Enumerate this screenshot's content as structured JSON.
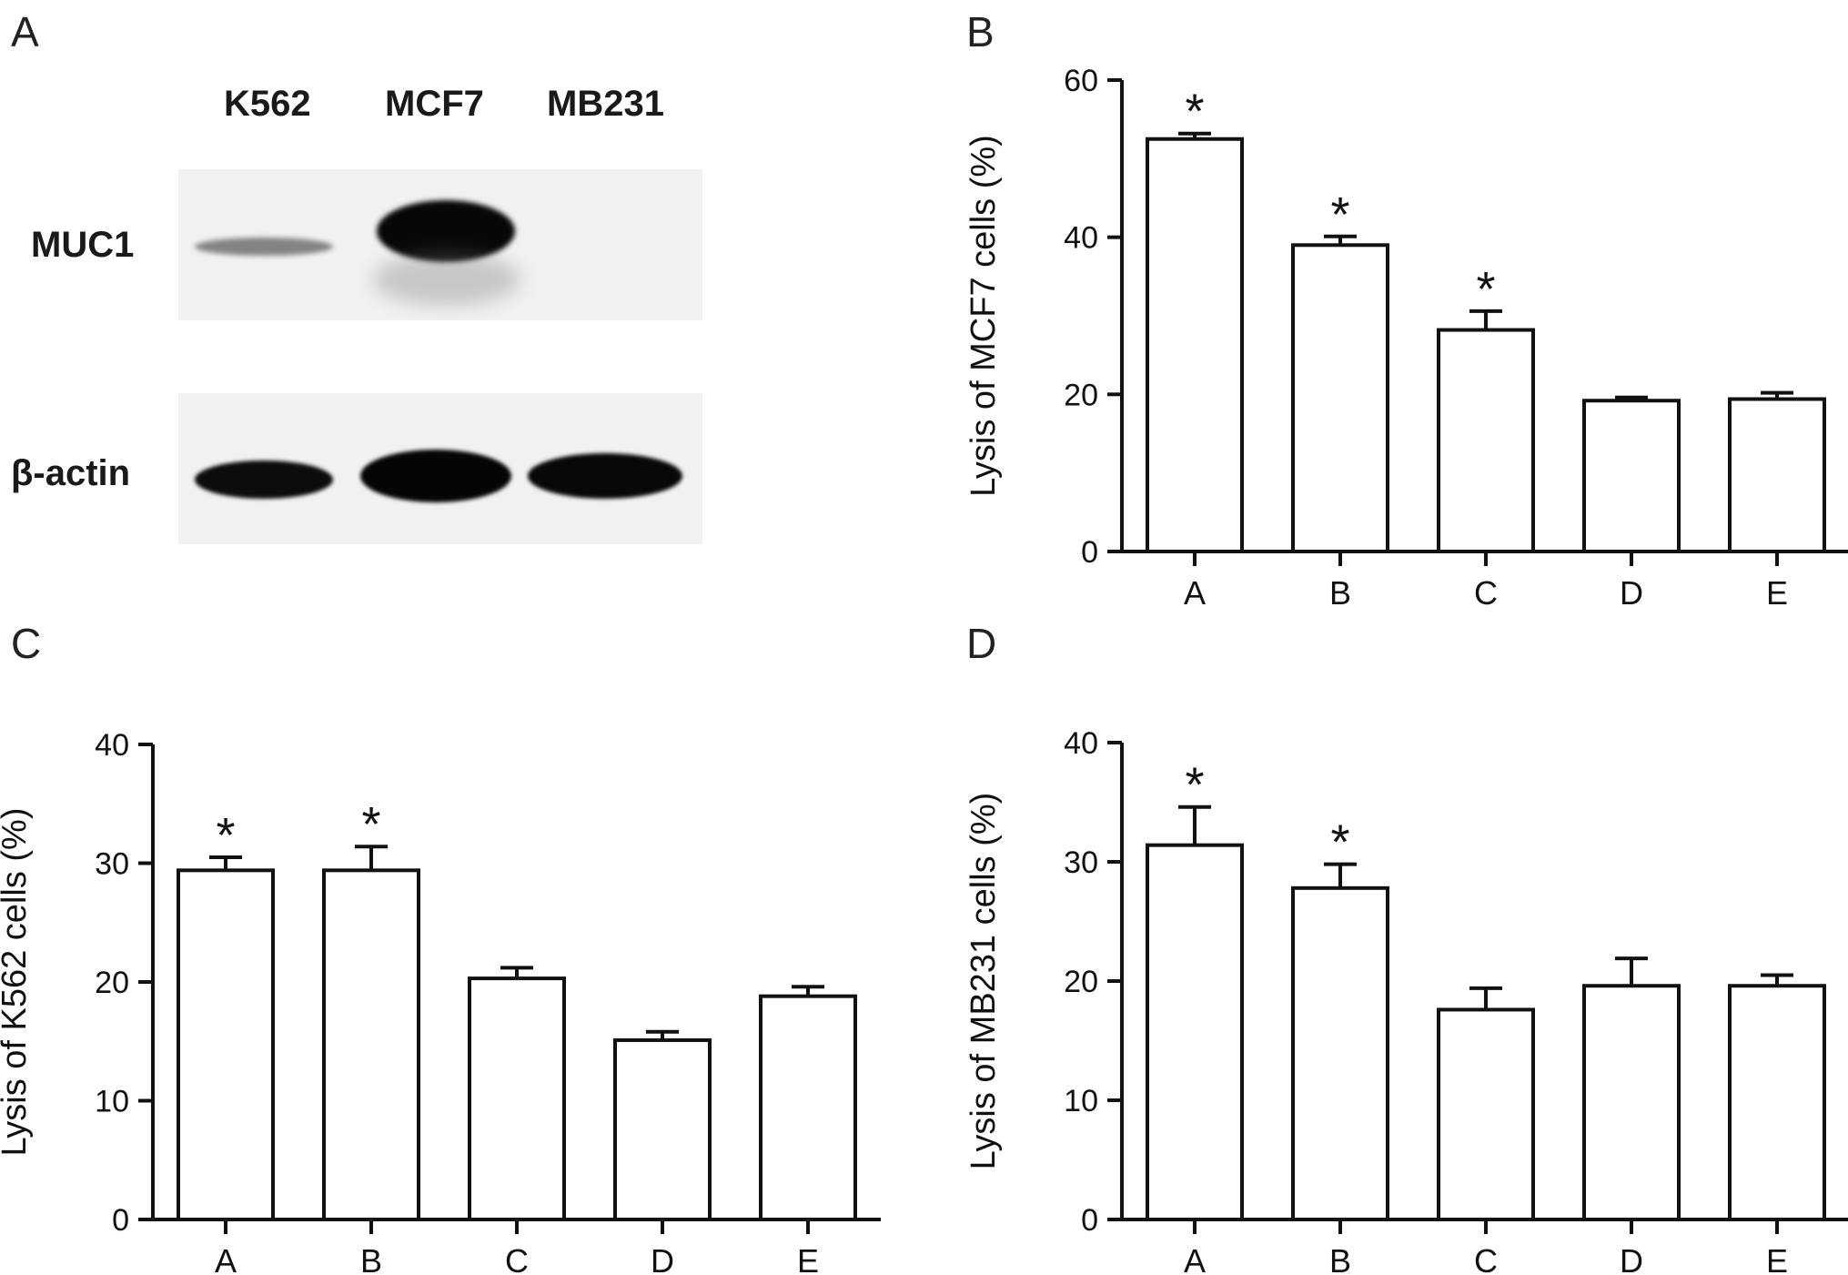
{
  "panels": {
    "A": "A",
    "B": "B",
    "C": "C",
    "D": "D"
  },
  "blot": {
    "lanes": [
      "K562",
      "MCF7",
      "MB231"
    ],
    "rows": [
      "MUC1",
      "β-actin"
    ],
    "muc1_relative_intensity": [
      0.25,
      1.0,
      0.0
    ],
    "actin_relative_intensity": [
      0.9,
      1.0,
      0.95
    ]
  },
  "chart_data": [
    {
      "panel": "B",
      "type": "bar",
      "categories": [
        "A",
        "B",
        "C",
        "D",
        "E"
      ],
      "values": [
        52.5,
        39.0,
        28.2,
        19.2,
        19.4
      ],
      "error": [
        0.7,
        1.1,
        2.4,
        0.4,
        0.8
      ],
      "significance": [
        "*",
        "*",
        "*",
        "",
        ""
      ],
      "ylabel": "Lysis of MCF7 cells (%)",
      "ylim": [
        0,
        60
      ],
      "yticks": [
        0,
        20,
        40,
        60
      ],
      "grid": false
    },
    {
      "panel": "C",
      "type": "bar",
      "categories": [
        "A",
        "B",
        "C",
        "D",
        "E"
      ],
      "values": [
        29.4,
        29.4,
        20.3,
        15.1,
        18.8
      ],
      "error": [
        1.1,
        2.0,
        0.9,
        0.7,
        0.8
      ],
      "significance": [
        "*",
        "*",
        "",
        "",
        ""
      ],
      "ylabel": "Lysis of K562 cells (%)",
      "ylim": [
        0,
        40
      ],
      "yticks": [
        0,
        10,
        20,
        30,
        40
      ],
      "grid": false
    },
    {
      "panel": "D",
      "type": "bar",
      "categories": [
        "A",
        "B",
        "C",
        "D",
        "E"
      ],
      "values": [
        31.4,
        27.8,
        17.6,
        19.6,
        19.6
      ],
      "error": [
        3.2,
        2.0,
        1.8,
        2.3,
        0.9
      ],
      "significance": [
        "*",
        "*",
        "",
        "",
        ""
      ],
      "ylabel": "Lysis of MB231 cells (%)",
      "ylim": [
        0,
        40
      ],
      "yticks": [
        0,
        10,
        20,
        30,
        40
      ],
      "grid": false
    }
  ]
}
